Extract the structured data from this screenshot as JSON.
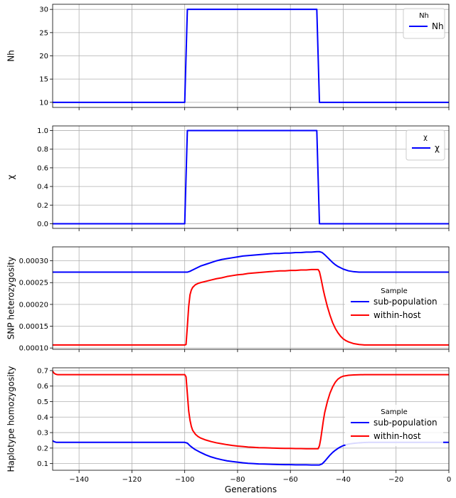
{
  "chart_data": [
    {
      "type": "line",
      "title": "",
      "xlabel": "",
      "ylabel": "Nh",
      "xlim": [
        -150,
        0
      ],
      "ylim": [
        8.9,
        31.1
      ],
      "yticks": [
        10,
        15,
        20,
        25,
        30
      ],
      "ytick_labels": [
        "10",
        "15",
        "20",
        "25",
        "30"
      ],
      "grid": true,
      "legend": {
        "title": "Nh",
        "placement": "top-right"
      },
      "series": [
        {
          "name": "Nh",
          "color": "#0000ff",
          "x": [
            -150,
            -100,
            -99,
            -50,
            -49,
            0
          ],
          "y": [
            10,
            10,
            30,
            30,
            10,
            10
          ]
        }
      ]
    },
    {
      "type": "line",
      "title": "",
      "xlabel": "",
      "ylabel": "χ",
      "xlim": [
        -150,
        0
      ],
      "ylim": [
        -0.05,
        1.05
      ],
      "yticks": [
        0.0,
        0.2,
        0.4,
        0.6,
        0.8,
        1.0
      ],
      "ytick_labels": [
        "0.0",
        "0.2",
        "0.4",
        "0.6",
        "0.8",
        "1.0"
      ],
      "grid": true,
      "legend": {
        "title": "χ",
        "placement": "top-right"
      },
      "series": [
        {
          "name": "χ",
          "color": "#0000ff",
          "x": [
            -150,
            -100,
            -99,
            -50,
            -49,
            0
          ],
          "y": [
            0,
            0,
            1,
            1,
            0,
            0
          ]
        }
      ]
    },
    {
      "type": "line",
      "title": "",
      "xlabel": "",
      "ylabel": "SNP heterozygosity",
      "xlim": [
        -150,
        0
      ],
      "ylim": [
        9.7e-05,
        0.000332
      ],
      "yticks": [
        0.0001,
        0.00015,
        0.0002,
        0.00025,
        0.0003
      ],
      "ytick_labels": [
        "0.00010",
        "0.00015",
        "0.00020",
        "0.00025",
        "0.00030"
      ],
      "grid": true,
      "legend": {
        "title": "Sample",
        "placement": "right"
      },
      "series": [
        {
          "name": "sub-population",
          "color": "#0000ff",
          "x": [
            -150,
            -100,
            -99,
            -98,
            -96,
            -94,
            -92,
            -90,
            -88,
            -86,
            -84,
            -82,
            -80,
            -78,
            -76,
            -74,
            -72,
            -70,
            -68,
            -66,
            -64,
            -62,
            -60,
            -58,
            -56,
            -54,
            -52,
            -50,
            -49,
            -48,
            -47,
            -46,
            -45,
            -44,
            -43,
            -42,
            -41,
            -40,
            -38,
            -36,
            -34,
            -32,
            -30,
            -20,
            0
          ],
          "y": [
            0.000274,
            0.000274,
            0.000274,
            0.000276,
            0.000282,
            0.000288,
            0.000292,
            0.000296,
            0.0003,
            0.000303,
            0.000305,
            0.000307,
            0.000309,
            0.000311,
            0.000312,
            0.000313,
            0.000314,
            0.000315,
            0.000316,
            0.000317,
            0.000317,
            0.000318,
            0.000318,
            0.000319,
            0.000319,
            0.00032,
            0.00032,
            0.000321,
            0.000321,
            0.000319,
            0.000314,
            0.000308,
            0.000302,
            0.000296,
            0.000291,
            0.000287,
            0.000284,
            0.000281,
            0.000277,
            0.000275,
            0.000274,
            0.000274,
            0.000274,
            0.000274,
            0.000274
          ]
        },
        {
          "name": "within-host",
          "color": "#ff0000",
          "x": [
            -150,
            -100,
            -99.5,
            -99,
            -98.5,
            -98,
            -97.5,
            -97,
            -96,
            -95,
            -94,
            -92,
            -90,
            -88,
            -86,
            -84,
            -82,
            -80,
            -78,
            -76,
            -74,
            -72,
            -70,
            -68,
            -66,
            -64,
            -62,
            -60,
            -58,
            -56,
            -54,
            -52,
            -50,
            -49.5,
            -49,
            -48.5,
            -48,
            -47.5,
            -47,
            -46,
            -45,
            -44,
            -43,
            -42,
            -41,
            -40,
            -39,
            -38,
            -37,
            -36,
            -34,
            -32,
            -30,
            -20,
            0
          ],
          "y": [
            0.000107,
            0.000107,
            0.000108,
            0.00015,
            0.000195,
            0.000222,
            0.000233,
            0.000239,
            0.000245,
            0.000248,
            0.00025,
            0.000253,
            0.000256,
            0.000259,
            0.000261,
            0.000264,
            0.000266,
            0.000268,
            0.000269,
            0.000271,
            0.000272,
            0.000273,
            0.000274,
            0.000275,
            0.000276,
            0.000277,
            0.000277,
            0.000278,
            0.000278,
            0.000279,
            0.000279,
            0.00028,
            0.00028,
            0.00028,
            0.000275,
            0.000262,
            0.000247,
            0.000232,
            0.000219,
            0.000195,
            0.000175,
            0.000158,
            0.000145,
            0.000135,
            0.000127,
            0.000121,
            0.000117,
            0.000114,
            0.000112,
            0.00011,
            0.000108,
            0.000107,
            0.000107,
            0.000107,
            0.000107
          ]
        }
      ]
    },
    {
      "type": "line",
      "title": "",
      "xlabel": "Generations",
      "ylabel": "Haplotype homozygosity",
      "xlim": [
        -150,
        0
      ],
      "ylim": [
        0.057,
        0.718
      ],
      "xticks": [
        -140,
        -120,
        -100,
        -80,
        -60,
        -40,
        -20,
        0
      ],
      "xtick_labels": [
        "−140",
        "−120",
        "−100",
        "−80",
        "−60",
        "−40",
        "−20",
        "0"
      ],
      "yticks": [
        0.1,
        0.2,
        0.3,
        0.4,
        0.5,
        0.6,
        0.7
      ],
      "ytick_labels": [
        "0.1",
        "0.2",
        "0.3",
        "0.4",
        "0.5",
        "0.6",
        "0.7"
      ],
      "grid": true,
      "legend": {
        "title": "Sample",
        "placement": "right"
      },
      "series": [
        {
          "name": "sub-population",
          "color": "#0000ff",
          "x": [
            -150,
            -149.5,
            -149,
            -148.5,
            -148,
            -100,
            -99,
            -98,
            -97,
            -96,
            -94,
            -92,
            -90,
            -88,
            -86,
            -84,
            -82,
            -80,
            -78,
            -76,
            -74,
            -72,
            -70,
            -68,
            -66,
            -64,
            -62,
            -60,
            -58,
            -56,
            -54,
            -52,
            -50,
            -49,
            -48,
            -47,
            -46,
            -45,
            -44,
            -43,
            -42,
            -41,
            -40,
            -38,
            -36,
            -34,
            -32,
            -30,
            -20,
            0
          ],
          "y": [
            0.248,
            0.242,
            0.239,
            0.237,
            0.237,
            0.237,
            0.232,
            0.215,
            0.202,
            0.19,
            0.172,
            0.156,
            0.143,
            0.133,
            0.125,
            0.118,
            0.113,
            0.109,
            0.105,
            0.102,
            0.1,
            0.098,
            0.097,
            0.096,
            0.095,
            0.094,
            0.093,
            0.093,
            0.092,
            0.092,
            0.092,
            0.091,
            0.091,
            0.091,
            0.098,
            0.115,
            0.135,
            0.155,
            0.172,
            0.186,
            0.198,
            0.208,
            0.216,
            0.226,
            0.231,
            0.234,
            0.236,
            0.237,
            0.237,
            0.237
          ]
        },
        {
          "name": "within-host",
          "color": "#ff0000",
          "x": [
            -150,
            -149.5,
            -149,
            -148.5,
            -148,
            -100,
            -99.5,
            -99,
            -98.5,
            -98,
            -97.5,
            -97,
            -96,
            -95,
            -94,
            -92,
            -90,
            -88,
            -86,
            -84,
            -82,
            -80,
            -78,
            -76,
            -74,
            -72,
            -70,
            -68,
            -66,
            -64,
            -62,
            -60,
            -58,
            -56,
            -54,
            -52,
            -50,
            -49.5,
            -49,
            -48.5,
            -48,
            -47.5,
            -47,
            -46,
            -45,
            -44,
            -43,
            -42,
            -41,
            -40,
            -38,
            -36,
            -34,
            -32,
            -30,
            -20,
            0
          ],
          "y": [
            0.696,
            0.684,
            0.678,
            0.675,
            0.674,
            0.674,
            0.66,
            0.55,
            0.44,
            0.38,
            0.34,
            0.315,
            0.29,
            0.275,
            0.265,
            0.252,
            0.242,
            0.234,
            0.228,
            0.222,
            0.217,
            0.213,
            0.21,
            0.207,
            0.205,
            0.203,
            0.202,
            0.201,
            0.2,
            0.199,
            0.198,
            0.198,
            0.197,
            0.197,
            0.196,
            0.196,
            0.196,
            0.196,
            0.215,
            0.26,
            0.32,
            0.38,
            0.43,
            0.5,
            0.555,
            0.595,
            0.625,
            0.645,
            0.657,
            0.664,
            0.67,
            0.672,
            0.673,
            0.674,
            0.674,
            0.674,
            0.674
          ]
        }
      ]
    }
  ]
}
